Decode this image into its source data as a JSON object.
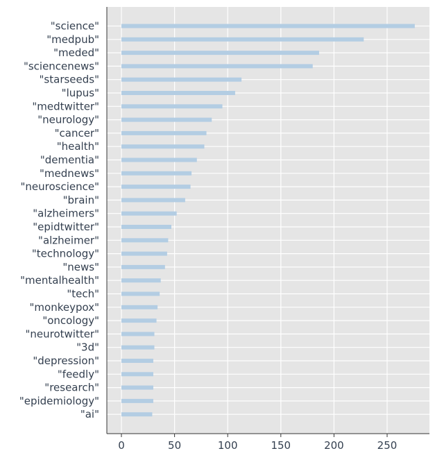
{
  "chart_data": {
    "type": "bar",
    "orientation": "horizontal",
    "title": "",
    "xlabel": "",
    "ylabel": "",
    "xlim": [
      -14,
      290
    ],
    "xticks": [
      0,
      50,
      100,
      150,
      200,
      250
    ],
    "grid": true,
    "legend": "none",
    "bar_color": "#b3cde3",
    "background_color": "#e5e5e5",
    "categories": [
      "\"science\"",
      "\"medpub\"",
      "\"meded\"",
      "\"sciencenews\"",
      "\"starseeds\"",
      "\"lupus\"",
      "\"medtwitter\"",
      "\"neurology\"",
      "\"cancer\"",
      "\"health\"",
      "\"dementia\"",
      "\"mednews\"",
      "\"neuroscience\"",
      "\"brain\"",
      "\"alzheimers\"",
      "\"epidtwitter\"",
      "\"alzheimer\"",
      "\"technology\"",
      "\"news\"",
      "\"mentalhealth\"",
      "\"tech\"",
      "\"monkeypox\"",
      "\"oncology\"",
      "\"neurotwitter\"",
      "\"3d\"",
      "\"depression\"",
      "\"feedly\"",
      "\"research\"",
      "\"epidemiology\"",
      "\"ai\""
    ],
    "values": [
      276,
      228,
      186,
      180,
      113,
      107,
      95,
      85,
      80,
      78,
      71,
      66,
      65,
      60,
      52,
      47,
      44,
      43,
      41,
      37,
      36,
      34,
      33,
      31,
      31,
      30,
      30,
      30,
      30,
      29
    ]
  }
}
